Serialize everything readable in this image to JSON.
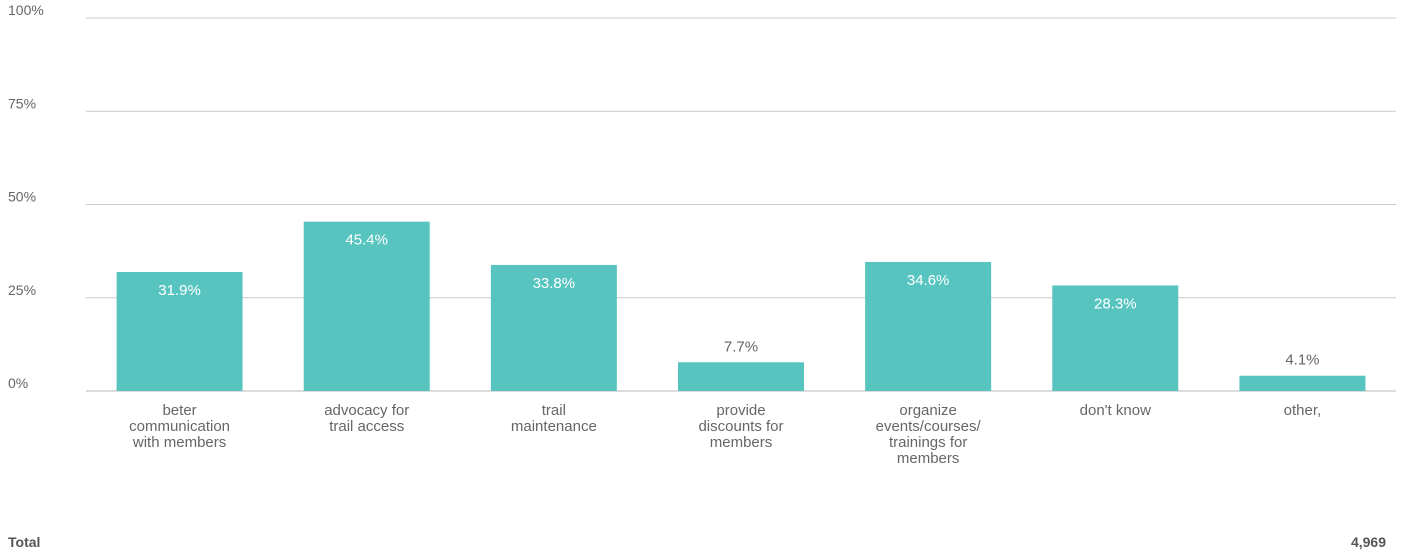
{
  "chart_data": {
    "type": "bar",
    "categories": [
      [
        "beter",
        "communication",
        "with members"
      ],
      [
        "advocacy for",
        "trail access"
      ],
      [
        "trail",
        "maintenance"
      ],
      [
        "provide",
        "discounts for",
        "members"
      ],
      [
        "organize",
        "events/courses/",
        "trainings for",
        "members"
      ],
      [
        "don't know"
      ],
      [
        "other,"
      ]
    ],
    "values": [
      31.9,
      45.4,
      33.8,
      7.7,
      34.6,
      28.3,
      4.1
    ],
    "data_labels": [
      "31.9%",
      "45.4%",
      "33.8%",
      "7.7%",
      "34.6%",
      "28.3%",
      "4.1%"
    ],
    "ylim": [
      0,
      100
    ],
    "yticks": [
      0,
      25,
      50,
      75,
      100
    ],
    "ytick_labels": [
      "0%",
      "25%",
      "50%",
      "75%",
      "100%"
    ],
    "grid": true,
    "bar_color": "#57c4c0",
    "title": "",
    "xlabel": "",
    "ylabel": ""
  },
  "footer": {
    "total_label": "Total",
    "total_value": "4,969"
  }
}
